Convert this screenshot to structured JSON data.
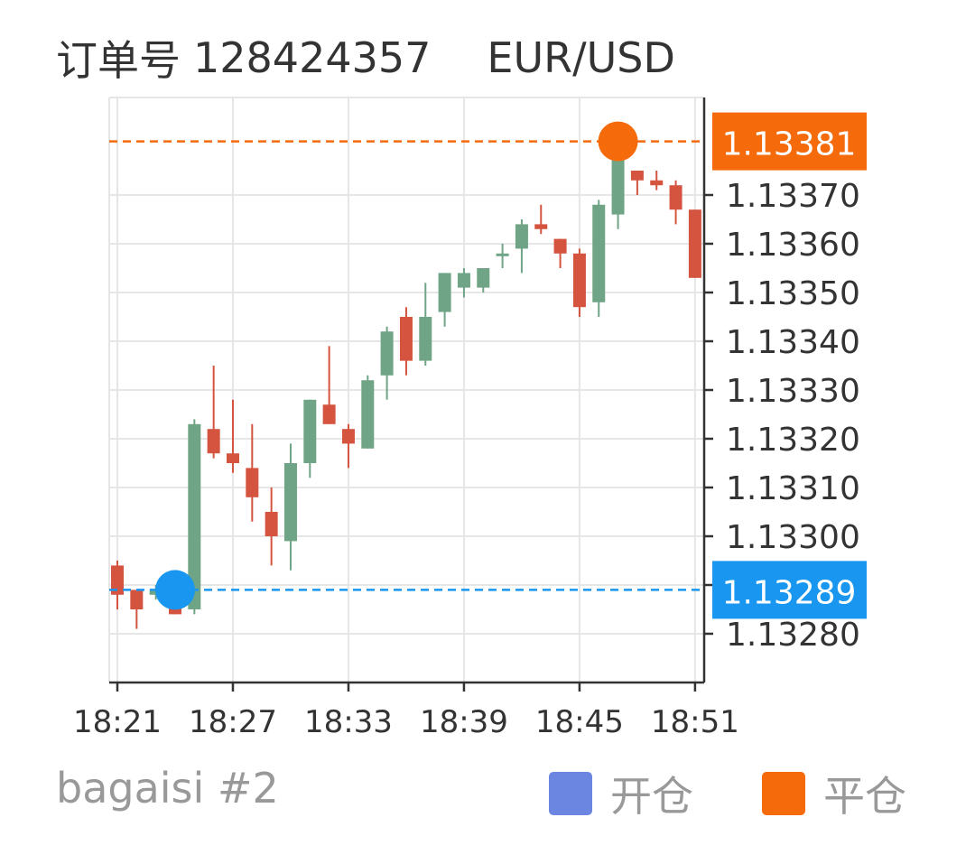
{
  "header": {
    "order_label": "订单号",
    "order_number": "128424357",
    "symbol": "EUR/USD"
  },
  "footer": {
    "account": "bagaisi #2",
    "legend_open_label": "开仓",
    "legend_close_label": "平仓"
  },
  "colors": {
    "up_candle": "#6fa586",
    "down_candle": "#d4543f",
    "open_marker": "#1896f0",
    "close_marker": "#f56a0b",
    "legend_open": "#6a86e0",
    "legend_close": "#f56a0b",
    "grid": "#e6e6e6",
    "axis": "#333333"
  },
  "chart_data": {
    "type": "candlestick",
    "symbol": "EUR/USD",
    "x_tick_labels": [
      "18:21",
      "18:27",
      "18:33",
      "18:39",
      "18:45",
      "18:51"
    ],
    "y_tick_labels": [
      "1.13280",
      "1.13290",
      "1.13300",
      "1.13310",
      "1.13320",
      "1.13330",
      "1.13340",
      "1.13350",
      "1.13360",
      "1.13370"
    ],
    "ylim": [
      1.1327,
      1.1339
    ],
    "grid": true,
    "open_trade": {
      "label": "1.13289",
      "price": 1.13289,
      "time": "18:24"
    },
    "close_trade": {
      "label": "1.13381",
      "price": 1.13381,
      "time": "18:47"
    },
    "legend": [
      "开仓",
      "平仓"
    ],
    "candles": [
      {
        "time": "18:21",
        "open": 1.13294,
        "high": 1.13295,
        "low": 1.13285,
        "close": 1.13288
      },
      {
        "time": "18:22",
        "open": 1.13289,
        "high": 1.13289,
        "low": 1.13281,
        "close": 1.13285
      },
      {
        "time": "18:23",
        "open": 1.13288,
        "high": 1.1329,
        "low": 1.13287,
        "close": 1.13289
      },
      {
        "time": "18:24",
        "open": 1.13288,
        "high": 1.1329,
        "low": 1.13284,
        "close": 1.13284
      },
      {
        "time": "18:25",
        "open": 1.13285,
        "high": 1.13324,
        "low": 1.13284,
        "close": 1.13323
      },
      {
        "time": "18:26",
        "open": 1.13322,
        "high": 1.13335,
        "low": 1.13316,
        "close": 1.13317
      },
      {
        "time": "18:27",
        "open": 1.13317,
        "high": 1.13328,
        "low": 1.13313,
        "close": 1.13315
      },
      {
        "time": "18:28",
        "open": 1.13314,
        "high": 1.13323,
        "low": 1.13303,
        "close": 1.13308
      },
      {
        "time": "18:29",
        "open": 1.13305,
        "high": 1.1331,
        "low": 1.13294,
        "close": 1.133
      },
      {
        "time": "18:30",
        "open": 1.13299,
        "high": 1.13319,
        "low": 1.13293,
        "close": 1.13315
      },
      {
        "time": "18:31",
        "open": 1.13315,
        "high": 1.13328,
        "low": 1.13312,
        "close": 1.13328
      },
      {
        "time": "18:32",
        "open": 1.13327,
        "high": 1.13339,
        "low": 1.13323,
        "close": 1.13323
      },
      {
        "time": "18:33",
        "open": 1.13322,
        "high": 1.13323,
        "low": 1.13314,
        "close": 1.13319
      },
      {
        "time": "18:34",
        "open": 1.13318,
        "high": 1.13333,
        "low": 1.13318,
        "close": 1.13332
      },
      {
        "time": "18:35",
        "open": 1.13333,
        "high": 1.13343,
        "low": 1.13328,
        "close": 1.13342
      },
      {
        "time": "18:36",
        "open": 1.13345,
        "high": 1.13347,
        "low": 1.13333,
        "close": 1.13336
      },
      {
        "time": "18:37",
        "open": 1.13336,
        "high": 1.13352,
        "low": 1.13335,
        "close": 1.13345
      },
      {
        "time": "18:38",
        "open": 1.13346,
        "high": 1.13354,
        "low": 1.13343,
        "close": 1.13354
      },
      {
        "time": "18:39",
        "open": 1.13351,
        "high": 1.13355,
        "low": 1.13349,
        "close": 1.13354
      },
      {
        "time": "18:40",
        "open": 1.13351,
        "high": 1.13355,
        "low": 1.1335,
        "close": 1.13355
      },
      {
        "time": "18:41",
        "open": 1.13358,
        "high": 1.1336,
        "low": 1.13355,
        "close": 1.13358
      },
      {
        "time": "18:42",
        "open": 1.13359,
        "high": 1.13365,
        "low": 1.13354,
        "close": 1.13364
      },
      {
        "time": "18:43",
        "open": 1.13364,
        "high": 1.13368,
        "low": 1.13362,
        "close": 1.13363
      },
      {
        "time": "18:44",
        "open": 1.13361,
        "high": 1.13361,
        "low": 1.13355,
        "close": 1.13358
      },
      {
        "time": "18:45",
        "open": 1.13358,
        "high": 1.13359,
        "low": 1.13345,
        "close": 1.13347
      },
      {
        "time": "18:46",
        "open": 1.13348,
        "high": 1.13369,
        "low": 1.13345,
        "close": 1.13368
      },
      {
        "time": "18:47",
        "open": 1.13366,
        "high": 1.13381,
        "low": 1.13363,
        "close": 1.13381
      },
      {
        "time": "18:48",
        "open": 1.13375,
        "high": 1.13375,
        "low": 1.1337,
        "close": 1.13373
      },
      {
        "time": "18:49",
        "open": 1.13373,
        "high": 1.13375,
        "low": 1.13371,
        "close": 1.13372
      },
      {
        "time": "18:50",
        "open": 1.13372,
        "high": 1.13373,
        "low": 1.13364,
        "close": 1.13367
      },
      {
        "time": "18:51",
        "open": 1.13367,
        "high": 1.13367,
        "low": 1.13353,
        "close": 1.13353
      }
    ]
  }
}
